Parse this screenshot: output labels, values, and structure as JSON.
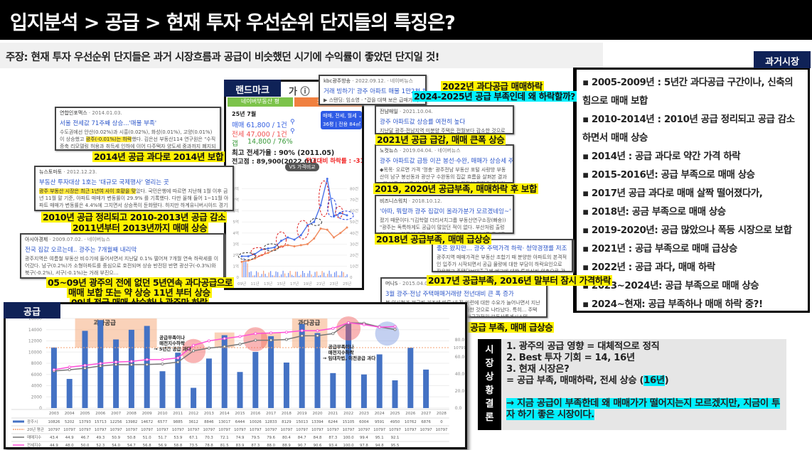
{
  "title": "입지분석 > 공급 > 현재 투자 우선순위 단지들의 특징은?",
  "claim": "주장: 현재 투자 우선순위 단지들은 과거 시장흐름과 공급이 비슷했던 시기에 수익률이 좋았던 단지일 것!",
  "past_market": {
    "tag": "과거시장",
    "items": [
      "▪ 2005-2009년 : 5년간 과다공급 구간이나, 신축의 힘으로 매매 보합",
      "▪ 2010-2014년 : 2010년 공급 정리되고 공급 감소 하면서 매매 상승",
      "▪ 2014년 : 공급 과다로 약간 가격 하락",
      "▪ 2015-2016년: 공급 부족으로 매매 상승",
      "▪ 2017년 공급 과다로 매매 살짝 떨어졌다가,",
      "▪ 2018년: 공금 부족으로 매매 상승",
      "▪ 2019-2020년: 공급 많았으나 폭등 시장으로 보합",
      "▪ 2021년 : 공급 부족으로 매매 급상승",
      "▪ 2022년 : 공급 과다, 매매 하락",
      "▪ 2023~2024년: 공급 부족으로 매매 상승",
      "▪ 2024~현재: 공급 부족하나 매매 하락 중?!"
    ]
  },
  "landmark": {
    "tag": "랜드마크",
    "name_suffix": "가 ⓘ",
    "naver_button": "네이버부동산 평",
    "zoom_button": "크게 보기",
    "month": "25년 7월",
    "sale": "매매 61,800 / 1건",
    "jeonse": "전세 47,000 / 1건",
    "gap": "갭",
    "gap_value": "14,800 / 76%",
    "max_jeonse_ratio": "최고 전세가율 : 90% (2011.05)",
    "peak": "전고점 : 89,900(2022.01)",
    "drop": "전고대비 하락률 : -31%",
    "type_select": "매매, 전세, 월세 ⌄",
    "area": "36평 | 전용 84㎡",
    "compare_button": "VS 가격비교",
    "colors": {
      "sale": "#4a72e8",
      "jeonse": "#f08a5d",
      "highlight_red": "#e02020",
      "highlight_blue": "#2040e0"
    }
  },
  "clippings": [
    {
      "source": "연합인포맥스",
      "date": "· 2014.01.03.",
      "headline": "서울 전세값 71주째 상승...'매물 부족'",
      "body_pre": "수도권에선 안산(0.02%)과 시흥(0.02%), 화성(0.01%), 고양(0.01%)이 상승했고 ",
      "body_mark": "광주(-0.01%)는 하락",
      "body_post": "했다. 김은선 부동산114 연구원은 \"수직증축 리모델링 허용과 취득세 인하에 이어 다주택자 양도세 중과까지 폐지되면서 매..."
    },
    {
      "source": "뉴스토마토",
      "date": "· 2012.12.23.",
      "headline": "부동산 투자대상 1호는 '대규모 국제행사' 열리는 곳",
      "body_pre": "",
      "body_mark": "광주 부동산 시장은 최근 1년여 사이 호황을 맞",
      "body_post": "았다. 국민은행에 따르면 지난해 1월 이후 금년 11월 말 기준, 아파트 매매가 변동률이 29.9% 를 기록했다. 다만 올해 들어 1~11월 아파트 매매가 변동률은 4.4%에 그치면서 상승폭이 둔화됐다. 하지만 하계유니버시아드 경기장과..."
    },
    {
      "source": "아시아경제",
      "date": "· 2009.07.02. · 네이버뉴스",
      "headline": "전국 집값 오르는데.. 광주는 7개월째 내리막",
      "body_pre": "광주지역은 여름철 부동산 비수기에 들어서면서 지난달 0.1% 떨어져 7개월 연속 하락세를 이어갔다. 남구(0.2%)가 소형아파트를 중심으로 호전되며 상승 반전된 반면 광산구(-0.3%)와 북구(-0.2%), 서구(-0.1%)는 거래 부진으...",
      "body_mark": "",
      "body_post": ""
    },
    {
      "source": "kbc광주방송",
      "date": "· 2022.09.12. · 네이버뉴스",
      "headline": "거래 빙하기' 광주 아파트 매물 1만2천 채..가격 하락 가속",
      "body_pre": "▶ 스탠딩: 임소영 · \"갑을 대책 보은 급매가 아니면 거래가 이뤄지지 않고 있습니다\" 전세 광주시내 아파트 매물은 무려 1만 2,000건 이상 쌓이고 있습니다. 이매물 한국부동산원 광주지사 부장 · \"광주는 현재 전월세와...",
      "body_mark": "",
      "body_post": ""
    },
    {
      "source": "전남매일",
      "date": "· 2021.10.04.",
      "headline": "광주 아파트값 상승률 여전히 높다",
      "body_pre": "지난달 광주·전남지역 미분양 주택은 전월보다 감소한 것으로 나타났다. 한국부동산원이 발표한 '2021년 9월 4주(27일 기준) 전국 주간 아파트 가격동향'에 따르면 광주 아파트 매매가격 상승률은 전주보다 0.01%p 떨어진 0.24%였다. 지난 1월 13일 기준 매매가격 상승률(0.00%)...",
      "body_mark": "",
      "body_post": ""
    },
    {
      "source": "노컷뉴스",
      "date": "· 2019.04.04. · 네이버뉴스",
      "headline": "광주 아파트값 급등 이끈 봉선·수완, 매매가 상승세 주춤",
      "body_pre": "◆목목· 오르면 가격 '껑충' 광주전남 부동산 포털 사랑방 부동산이 남구 봉선동과 광산구 수완동의 집값 흐름을 살펴본 결과 3월 남구 봉선동 아파트의 매매 호가는 집값이 정점을 찍었던 지난해 9월보다 2.5%, 넉 달 전인 지...",
      "body_mark": "",
      "body_post": ""
    },
    {
      "source": "비즈니스워치",
      "date": "· 2018.10.12.",
      "headline": "'아따, 뭐랄까 광주 집값이 올라가분가 모르겠네잉~'",
      "body_pre": "졌기 때문이다.\"(김학렬 더리서치그룹 부동산연구소장(빠숑)) \"광주는 독특하게도 공급이 많았던 적이 없다. 부산처럼 출렁이지 않고 꾸준히 오르는 시장이고 그렇다보니 별다른 규제도 없다.\"(안명숙 우리은행 부동산투자...",
      "body_mark": "",
      "body_post": ""
    },
    {
      "source": "",
      "date": "",
      "headline": "좋은 왔지만... 광주 주택가격 하락· 청약경쟁률 저조",
      "body_pre": "광주지역 매매가격은 부동산 조합기 때 분양한 아파트의 본격적인 입주가 시작되면서 공급 물량에 대한 부담이 하락요인으로 작용했고 주택담보대출규제 예고에 대한 투자심리 위축으로 관망세가 짙어져 마이너스 변동률을 기록했다. 전셋값 폭등과 높은 전세가율로 내 집 마...",
      "body_mark": "",
      "body_post": ""
    },
    {
      "source": "머니S",
      "date": "· 2015.04.09.",
      "headline": "3월 광주·전남 주택매매거래량 전년대비 큰 폭 증가",
      "body_pre": "봄 이사철과 저금리 기조에 따른 내 집 마련에 대한 수요가 늘어나면서 지난달 광주·전남지역 주택매매거래량이 증가한 것으로 나타났다. 특히... 주택 거래량 및 실거래가에 대한 세부자료는 한국감정원 부동산통계시스템(www.r-one.co.kr), 부동산가격정보 앱 또는 국토교통부...",
      "body_mark": "",
      "body_post": ""
    }
  ],
  "captions": {
    "c2014": "2014년 공급 과다로 2014년 보합",
    "c2010a": "2010년 공급 정리되고 2010-2013년 공급 감소",
    "c2010b": "2011년부터 2013년까지 매매 상승",
    "c0509a": "05~09년 광주의 전에 없던 5년연속 과다공급으로",
    "c0509b": "매매 보합 또는 약 상승 11년 부터 상승",
    "c0509c": "09년 전국 매매 상승하나 광주만 하락",
    "c2022": "2022년 과다공급 매매하락",
    "c2024": "2024-2025년 공급 부족인데 왜 하락할까?",
    "c2021": "2021년 공급 급감, 매매 큰폭 상승",
    "c2019": "2019, 2020년 공급부족, 매매하락 후 보합",
    "c2018": "2018년 공급부족, 매매 급상승",
    "c2017": "2017년 공급부족, 2016년 말부터 잠시 가격하락",
    "c2015": "2015-2016년 공급 부족, 매매 급상승"
  },
  "supply": {
    "tag": "공급",
    "oversupply_label": "과다공급",
    "note1": [
      "공급부족이나",
      "매전지수하락",
      "→ 5년간 공급 과다"
    ],
    "note2": [
      "공급부족이나",
      "매전지수하락",
      "→ 임대차법, 이전공급 과다"
    ]
  },
  "chart_data": [
    {
      "type": "bar",
      "categories": [
        "2003",
        "2004",
        "2005",
        "2006",
        "2007",
        "2008",
        "2009",
        "2010",
        "2011",
        "2012",
        "2013",
        "2014",
        "2015",
        "2016",
        "2017",
        "2018",
        "2019",
        "2020",
        "2021",
        "2022",
        "2023",
        "2024",
        "2025",
        "2026",
        "2027",
        "2028"
      ],
      "series": [
        {
          "name": "광주시",
          "type": "bar",
          "axis": "left",
          "color": "#4472c4",
          "values": [
            10826,
            5202,
            13793,
            15713,
            12256,
            13982,
            14672,
            6577,
            9885,
            3612,
            8846,
            13017,
            6444,
            10026,
            12833,
            8129,
            15013,
            13394,
            6244,
            15105,
            6004,
            9591,
            4950,
            10762,
            6876,
            0
          ]
        },
        {
          "name": "20년 평균",
          "type": "dashed-line",
          "axis": "left",
          "color": "#f4a070",
          "values": [
            10797,
            10797,
            10797,
            10797,
            10797,
            10797,
            10797,
            10797,
            10797,
            10797,
            10797,
            10797,
            10797,
            10797,
            10797,
            10797,
            10797,
            10797,
            10797,
            10797,
            10797,
            10797,
            10797,
            10797,
            10797,
            10797
          ]
        },
        {
          "name": "매매지수",
          "type": "line",
          "axis": "right",
          "color": "#777777",
          "values": [
            43.4,
            44.9,
            46.7,
            49.3,
            50.9,
            50.8,
            51.0,
            51.7,
            53.9,
            67.1,
            70.3,
            72.1,
            74.9,
            79.5,
            79.6,
            80.4,
            84.7,
            84.8,
            87.3,
            100.0,
            99.4,
            95.1,
            92.1,
            null,
            null,
            null
          ]
        },
        {
          "name": "전세지수",
          "type": "line",
          "axis": "right",
          "color": "#ff4fd8",
          "values": [
            44.9,
            48.0,
            50.0,
            52.3,
            54.0,
            54.7,
            56.8,
            56.9,
            58.8,
            73.5,
            78.8,
            81.5,
            83.9,
            87.3,
            88.0,
            88.9,
            90.7,
            90.6,
            93.4,
            100.0,
            97.8,
            94.8,
            95.5,
            null,
            null,
            null
          ]
        }
      ],
      "left_ticks": [
        "0",
        "2000",
        "4000",
        "6000",
        "8000",
        "10000",
        "12000",
        "14000",
        "16000"
      ],
      "right_ticks": [
        "0.0",
        "20.0",
        "40.0",
        "60.0",
        "80.0"
      ],
      "right_ref_label": "10797",
      "ylim_left": [
        0,
        16000
      ],
      "ylim_right": [
        0,
        100
      ],
      "oversupply_ranges": [
        [
          "2005",
          "2009"
        ],
        [
          "2014",
          "2014"
        ],
        [
          "2017",
          "2017"
        ],
        [
          "2019",
          "2020"
        ]
      ],
      "red_circles": [
        "2012",
        "2016",
        "2022"
      ],
      "blue_circles": [
        "2024.5"
      ],
      "grid": true,
      "legend": "table-bottom"
    },
    {
      "type": "line",
      "x_ticks": [
        "09년",
        "11년",
        "13년",
        "15년",
        "17년",
        "19년",
        "21년",
        "23년",
        "25년"
      ],
      "left_ticks": [
        "0",
        "1억",
        "2억",
        "3억",
        "4억",
        "5억",
        "6억",
        "7억",
        "8억"
      ],
      "right_ticks": [
        "0",
        "10건",
        "20건",
        "30건",
        "40건",
        "50건",
        "60건",
        "70건",
        "80건"
      ],
      "x": [
        2009,
        2010,
        2011,
        2012,
        2013,
        2014,
        2015,
        2016,
        2017,
        2018,
        2019,
        2020,
        2021,
        2022,
        2023,
        2024,
        2025
      ],
      "series": [
        {
          "name": "매매",
          "color": "#4a72e8",
          "values": [
            1.9,
            1.9,
            2.1,
            2.5,
            2.6,
            2.7,
            3.3,
            3.6,
            3.4,
            3.8,
            4.7,
            5.0,
            6.5,
            8.9,
            5.5,
            5.8,
            5.6
          ]
        },
        {
          "name": "전세",
          "color": "#f08a5d",
          "values": [
            1.4,
            1.5,
            1.7,
            2.0,
            2.2,
            2.5,
            2.8,
            2.9,
            2.8,
            2.9,
            3.0,
            3.5,
            4.4,
            4.3,
            3.6,
            4.0,
            4.5
          ]
        }
      ]
    }
  ],
  "conclusion": {
    "label": [
      "시",
      "장",
      "상",
      "황",
      "결",
      "론"
    ],
    "item1": "1.   광주의 공급 영향 = 대체적으로 정직",
    "item2": "2.   Best 투자 기회 = 14, 16년",
    "item3": "3.   현재 시장은?",
    "item4_pre": "= 공급 부족, 매매하락, 전세 상승 (",
    "item4_mark": "16년",
    "item4_post": ")",
    "final": "→ 지금 공급이 부족한데 왜 매매가가 떨어지는지 모르겠지만, 지금이 투자 하기 좋은 시장이다."
  }
}
